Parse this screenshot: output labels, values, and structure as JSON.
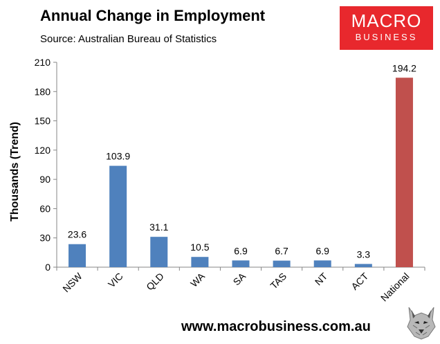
{
  "chart_data": {
    "type": "bar",
    "title": "Annual Change in Employment",
    "subtitle": "Source: Australian Bureau of Statistics",
    "xlabel": "",
    "ylabel": "Thousands (Trend)",
    "ylim": [
      0,
      210
    ],
    "yticks": [
      0,
      30,
      60,
      90,
      120,
      150,
      180,
      210
    ],
    "categories": [
      "NSW",
      "VIC",
      "QLD",
      "WA",
      "SA",
      "TAS",
      "NT",
      "ACT",
      "National"
    ],
    "values": [
      23.6,
      103.9,
      31.1,
      10.5,
      6.9,
      6.7,
      6.9,
      3.3,
      194.2
    ],
    "data_labels": [
      "23.6",
      "103.9",
      "31.1",
      "10.5",
      "6.9",
      "6.7",
      "6.9",
      "3.3",
      "194.2"
    ],
    "bar_colors": [
      "#4f81bd",
      "#4f81bd",
      "#4f81bd",
      "#4f81bd",
      "#4f81bd",
      "#4f81bd",
      "#4f81bd",
      "#4f81bd",
      "#c0504d"
    ],
    "grid": false,
    "legend": "none"
  },
  "logo": {
    "line1": "MACRO",
    "line2": "BUSINESS",
    "background": "#e8282d"
  },
  "footer": {
    "url": "www.macrobusiness.com.au",
    "icon": "wolf-icon"
  }
}
